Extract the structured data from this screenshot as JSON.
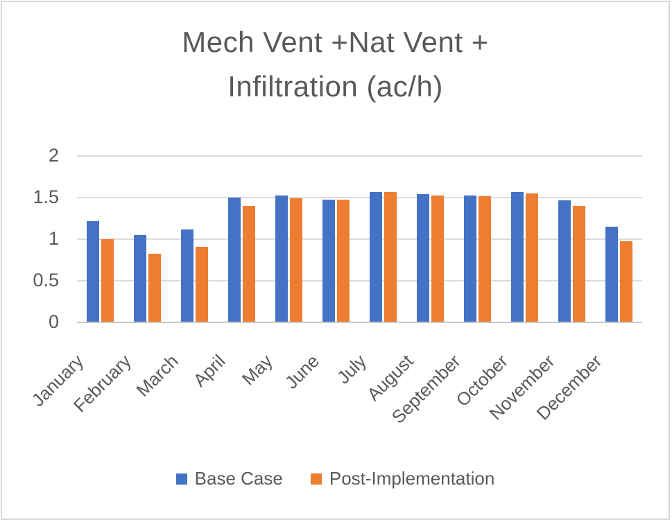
{
  "chart_data": {
    "type": "bar",
    "title": "Mech Vent +Nat Vent + Infiltration (ac/h)",
    "title_lines": [
      "Mech Vent +Nat Vent +",
      "Infiltration (ac/h)"
    ],
    "categories": [
      "January",
      "February",
      "March",
      "April",
      "May",
      "June",
      "July",
      "August",
      "September",
      "October",
      "November",
      "December"
    ],
    "series": [
      {
        "name": "Base Case",
        "color": "#4472C4",
        "values": [
          1.21,
          1.04,
          1.11,
          1.49,
          1.52,
          1.47,
          1.56,
          1.53,
          1.52,
          1.56,
          1.46,
          1.14
        ]
      },
      {
        "name": "Post-Implementation",
        "color": "#ED7D31",
        "values": [
          0.99,
          0.82,
          0.9,
          1.39,
          1.48,
          1.47,
          1.56,
          1.52,
          1.51,
          1.54,
          1.39,
          0.97
        ]
      }
    ],
    "xlabel": "",
    "ylabel": "",
    "ylim": [
      0,
      2
    ],
    "yticks": [
      2,
      1.5,
      1,
      0.5,
      0
    ],
    "ytick_labels": [
      "2",
      "1.5",
      "1",
      "0.5",
      "0"
    ],
    "grid": true,
    "legend_position": "bottom"
  },
  "colors": {
    "title_text": "#595959",
    "axis_text": "#595959",
    "gridline": "#dcdcdc",
    "axis_line": "#c9c9c9",
    "chart_border": "#d8d8d8",
    "background": "#ffffff"
  }
}
